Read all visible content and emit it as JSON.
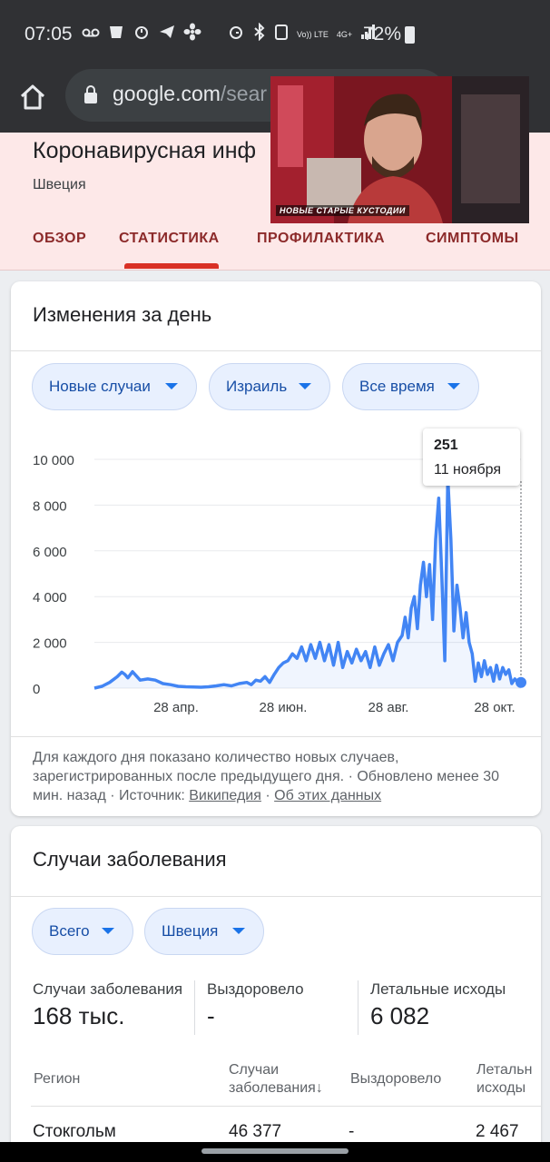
{
  "status_bar": {
    "time": "07:05",
    "network_label_top": "Vo)) LTE",
    "network_label_4g": "4G+",
    "battery": "72%"
  },
  "browser": {
    "url_host": "google.com",
    "url_path": "/sear"
  },
  "header": {
    "title": "Коронавирусная инф",
    "subtitle": "Швеция",
    "tabs": [
      "ОБЗОР",
      "СТАТИСТИКА",
      "ПРОФИЛАКТИКА",
      "СИМПТОМЫ"
    ],
    "active_tab": "СТАТИСТИКА"
  },
  "video_overlay": {
    "caption": "НОВЫЕ СТАРЫЕ КУСТОДИИ"
  },
  "daily_card": {
    "title": "Изменения за день",
    "filters": [
      "Новые случаи",
      "Израиль",
      "Все время"
    ],
    "tooltip": {
      "value": "251",
      "date": "11 ноября"
    },
    "footnote_text": "Для каждого дня показано количество новых случаев, зарегистрированных после предыдущего дня. · Обновлено менее 30 мин. назад  ·  Источник: ",
    "footnote_link_source": "Википедия",
    "footnote_sep": " · ",
    "footnote_link_about": "Об этих данных"
  },
  "chart_data": {
    "type": "line",
    "title": "",
    "xlabel": "",
    "ylabel": "",
    "y_tick_labels": [
      "10 000",
      "8 000",
      "6 000",
      "4 000",
      "2 000",
      "0"
    ],
    "y_ticks": [
      10000,
      8000,
      6000,
      4000,
      2000,
      0
    ],
    "x_tick_labels": [
      "28 апр.",
      "28 июн.",
      "28 авг.",
      "28 окт."
    ],
    "ylim": [
      0,
      10000
    ],
    "xlim": [
      0,
      280
    ],
    "grid": true,
    "color": "#4285f4",
    "series": [
      {
        "x": [
          0,
          5,
          10,
          15,
          18,
          20,
          22,
          25,
          28,
          30,
          35,
          40,
          45,
          50,
          55,
          60,
          65,
          70,
          75,
          80,
          85,
          90,
          95,
          100,
          103,
          106,
          109,
          112,
          115,
          118,
          121,
          124,
          127,
          130,
          133,
          136,
          139,
          142,
          145,
          148,
          151,
          154,
          157,
          160,
          163,
          166,
          169,
          172,
          175,
          178,
          181,
          184,
          187,
          190,
          193,
          196,
          199,
          202,
          204,
          206,
          208,
          210,
          212,
          214,
          216,
          218,
          220,
          222,
          224,
          226,
          228,
          230,
          232,
          234,
          236,
          238,
          240,
          242,
          244,
          246,
          248,
          250,
          252,
          254,
          256,
          258,
          260,
          262,
          264,
          266,
          268,
          270,
          272,
          274,
          276,
          278,
          280
        ],
        "values": [
          0,
          80,
          250,
          500,
          700,
          600,
          450,
          720,
          500,
          350,
          400,
          350,
          200,
          150,
          80,
          60,
          50,
          40,
          60,
          100,
          150,
          100,
          200,
          250,
          150,
          350,
          300,
          500,
          250,
          600,
          900,
          1100,
          1200,
          1500,
          1300,
          1800,
          1200,
          1900,
          1300,
          2000,
          1200,
          1900,
          1000,
          2000,
          900,
          1600,
          1100,
          1700,
          1200,
          1600,
          900,
          1800,
          1000,
          1500,
          1900,
          1200,
          2000,
          2300,
          3100,
          2200,
          3500,
          4000,
          2600,
          4500,
          5500,
          4000,
          5400,
          3000,
          6500,
          8300,
          5000,
          1200,
          9200,
          6500,
          2500,
          4500,
          3500,
          2200,
          3300,
          2000,
          1500,
          300,
          1100,
          500,
          1200,
          600,
          900,
          300,
          1000,
          400,
          900,
          600,
          800,
          200,
          400,
          251,
          250
        ]
      }
    ]
  },
  "cases_card": {
    "title": "Случаи заболевания",
    "filters": [
      "Всего",
      "Швеция"
    ],
    "stats": [
      {
        "label": "Случаи заболевания",
        "value": "168 тыс."
      },
      {
        "label": "Выздоровело",
        "value": "-"
      },
      {
        "label": "Летальные исходы",
        "value": "6 082"
      }
    ],
    "table": {
      "headers": [
        "Регион",
        "Случаи заболевания",
        "Выздоровело",
        "Летальные исходы"
      ],
      "header_cases_line1": "Случаи",
      "header_cases_line2": "заболевания",
      "header_cases_sort": "↓",
      "header_deaths_line1": "Летальн",
      "header_deaths_line2": "исходы",
      "rows": [
        {
          "region": "Стокгольм",
          "cases": "46 377",
          "recovered": "-",
          "deaths": "2 467"
        }
      ]
    }
  }
}
